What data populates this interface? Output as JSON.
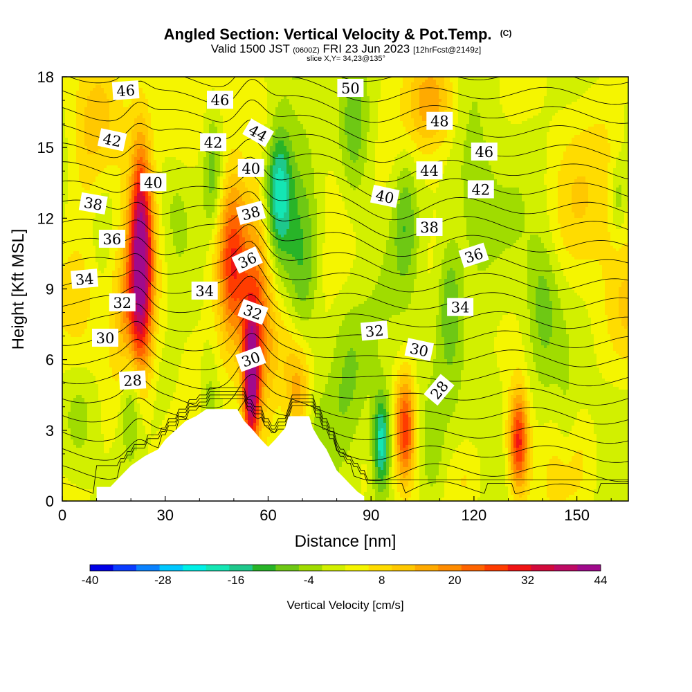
{
  "title": "Angled Section: Vertical Velocity & Pot.Temp.",
  "title_suffix": "(C)",
  "subtitle_valid": "Valid 1500 JST",
  "subtitle_utc": "(0600Z)",
  "subtitle_date": "FRI 23 Jun 2023",
  "subtitle_fcst": "[12hrFcst@2149z]",
  "subtitle_slice": "slice X,Y= 34,23@135°",
  "chart_data": {
    "type": "heatmap",
    "xlabel": "Distance [nm]",
    "ylabel": "Height [Kft MSL]",
    "xlim": [
      0,
      165
    ],
    "ylim": [
      0,
      18
    ],
    "xticks": [
      0,
      30,
      60,
      90,
      120,
      150
    ],
    "yticks": [
      0,
      3,
      6,
      9,
      12,
      15,
      18
    ],
    "colorbar": {
      "label": "Vertical Velocity [cm/s]",
      "min": -40,
      "max": 44,
      "step": 4,
      "tick_values": [
        -40,
        -28,
        -16,
        -4,
        8,
        20,
        32,
        44
      ],
      "colors": [
        "#0000e6",
        "#0a3cff",
        "#0a82ff",
        "#00c8ff",
        "#00f0e6",
        "#14e6b4",
        "#1ec88c",
        "#28b428",
        "#6ec814",
        "#a0dc00",
        "#d2f000",
        "#f5f500",
        "#ffdc00",
        "#ffc800",
        "#ffaa00",
        "#ff8c00",
        "#ff6400",
        "#ff3c00",
        "#f01414",
        "#d20a3c",
        "#be0a64",
        "#a00a8c"
      ]
    },
    "vertical_velocity_features": [
      {
        "x": 23,
        "y": 10.8,
        "value": 40,
        "x_spread": 2.3,
        "y_spread": 3.2
      },
      {
        "x": 20,
        "y": 7.5,
        "value": 18,
        "x_spread": 4,
        "y_spread": 3
      },
      {
        "x": 50,
        "y": 10.2,
        "value": 28,
        "x_spread": 3,
        "y_spread": 2.5
      },
      {
        "x": 55,
        "y": 5.0,
        "value": 40,
        "x_spread": 1.6,
        "y_spread": 2.0
      },
      {
        "x": 57,
        "y": 7.8,
        "value": 22,
        "x_spread": 3,
        "y_spread": 3
      },
      {
        "x": 66,
        "y": 6.5,
        "value": 12,
        "x_spread": 6,
        "y_spread": 2
      },
      {
        "x": 69,
        "y": 4.5,
        "value": 16,
        "x_spread": 2.5,
        "y_spread": 1.5
      },
      {
        "x": 100,
        "y": 3.0,
        "value": 28,
        "x_spread": 2.0,
        "y_spread": 1.6
      },
      {
        "x": 133,
        "y": 2.5,
        "value": 30,
        "x_spread": 2.0,
        "y_spread": 1.5
      },
      {
        "x": 108,
        "y": 17.0,
        "value": 16,
        "x_spread": 5,
        "y_spread": 1.5
      },
      {
        "x": 10,
        "y": 16.0,
        "value": 10,
        "x_spread": 5,
        "y_spread": 2.5
      },
      {
        "x": 33,
        "y": 16.5,
        "value": 8,
        "x_spread": 5,
        "y_spread": 2
      },
      {
        "x": 62,
        "y": 15.5,
        "value": 10,
        "x_spread": 4,
        "y_spread": 2
      },
      {
        "x": 45,
        "y": 11.0,
        "value": 10,
        "x_spread": 3,
        "y_spread": 2
      },
      {
        "x": 5,
        "y": 8.5,
        "value": 10,
        "x_spread": 5,
        "y_spread": 2
      },
      {
        "x": 80,
        "y": 13.0,
        "value": 6,
        "x_spread": 6,
        "y_spread": 2.5
      },
      {
        "x": 160,
        "y": 14.0,
        "value": 6,
        "x_spread": 5,
        "y_spread": 3
      },
      {
        "x": 150,
        "y": 1.5,
        "value": 6,
        "x_spread": 6,
        "y_spread": 1.5
      },
      {
        "x": 150,
        "y": 12.0,
        "value": 6,
        "x_spread": 5,
        "y_spread": 2.5
      },
      {
        "x": 118,
        "y": 0.8,
        "value": 6,
        "x_spread": 4,
        "y_spread": 1.2
      },
      {
        "x": 80,
        "y": 5.5,
        "value": 4,
        "x_spread": 4,
        "y_spread": 1.5
      },
      {
        "x": 165,
        "y": 8.0,
        "value": 6,
        "x_spread": 4,
        "y_spread": 2
      },
      {
        "x": 63,
        "y": 13.5,
        "value": -30,
        "x_spread": 3,
        "y_spread": 2.2
      },
      {
        "x": 70,
        "y": 9.0,
        "value": -14,
        "x_spread": 3.5,
        "y_spread": 4.5
      },
      {
        "x": 82,
        "y": 5.5,
        "value": -12,
        "x_spread": 5,
        "y_spread": 2.2
      },
      {
        "x": 93,
        "y": 2.5,
        "value": -24,
        "x_spread": 1.8,
        "y_spread": 1.5
      },
      {
        "x": 44,
        "y": 13.5,
        "value": -12,
        "x_spread": 2.0,
        "y_spread": 2.2
      },
      {
        "x": 43,
        "y": 4.0,
        "value": -8,
        "x_spread": 2.0,
        "y_spread": 1.8
      },
      {
        "x": 20,
        "y": 4.5,
        "value": -14,
        "x_spread": 2.2,
        "y_spread": 1.8
      },
      {
        "x": 5,
        "y": 3.2,
        "value": -8,
        "x_spread": 3.5,
        "y_spread": 1.5
      },
      {
        "x": 33,
        "y": 12.0,
        "value": -6,
        "x_spread": 3,
        "y_spread": 2
      },
      {
        "x": 85,
        "y": 16.0,
        "value": -10,
        "x_spread": 3,
        "y_spread": 2.5
      },
      {
        "x": 100,
        "y": 12.0,
        "value": -10,
        "x_spread": 2.5,
        "y_spread": 2
      },
      {
        "x": 113,
        "y": 8.5,
        "value": -12,
        "x_spread": 2.5,
        "y_spread": 2
      },
      {
        "x": 140,
        "y": 8.5,
        "value": -8,
        "x_spread": 3,
        "y_spread": 2
      },
      {
        "x": 120,
        "y": 12.5,
        "value": -6,
        "x_spread": 4,
        "y_spread": 2.5
      },
      {
        "x": 12,
        "y": 13.0,
        "value": -6,
        "x_spread": 3,
        "y_spread": 2
      },
      {
        "x": 125,
        "y": 4.0,
        "value": -4,
        "x_spread": 4,
        "y_spread": 2
      },
      {
        "x": 162,
        "y": 12.8,
        "value": -8,
        "x_spread": 1.5,
        "y_spread": 1.2
      },
      {
        "x": 33,
        "y": 1.5,
        "value": 6,
        "x_spread": 5,
        "y_spread": 1.5
      },
      {
        "x": 108,
        "y": 1.5,
        "value": -4,
        "x_spread": 2,
        "y_spread": 1.5
      },
      {
        "x": 147,
        "y": 3.0,
        "value": -4,
        "x_spread": 2,
        "y_spread": 1.5
      }
    ],
    "potential_temperature_contours": {
      "levels_C": [
        25,
        26,
        27,
        28,
        29,
        30,
        31,
        32,
        33,
        34,
        35,
        36,
        37,
        38,
        39,
        40,
        41,
        42,
        43,
        44,
        45,
        46,
        47,
        48,
        49,
        50,
        51
      ],
      "labels": [
        {
          "text": "46",
          "x": 18.5,
          "y": 17.4,
          "angle": -4
        },
        {
          "text": "42",
          "x": 14.5,
          "y": 15.3,
          "angle": 12
        },
        {
          "text": "40",
          "x": 26.5,
          "y": 13.5,
          "angle": 0
        },
        {
          "text": "38",
          "x": 9,
          "y": 12.6,
          "angle": 10
        },
        {
          "text": "36",
          "x": 14.5,
          "y": 11.1,
          "angle": 0
        },
        {
          "text": "34",
          "x": 6.5,
          "y": 9.4,
          "angle": -5
        },
        {
          "text": "32",
          "x": 17.5,
          "y": 8.4,
          "angle": 0
        },
        {
          "text": "30",
          "x": 12.5,
          "y": 6.9,
          "angle": 0
        },
        {
          "text": "28",
          "x": 20.5,
          "y": 5.1,
          "angle": -3
        },
        {
          "text": "46",
          "x": 46,
          "y": 17.0,
          "angle": 0
        },
        {
          "text": "42",
          "x": 44,
          "y": 15.2,
          "angle": 0
        },
        {
          "text": "44",
          "x": 57,
          "y": 15.6,
          "angle": 30
        },
        {
          "text": "40",
          "x": 55,
          "y": 14.1,
          "angle": 0
        },
        {
          "text": "38",
          "x": 55,
          "y": 12.2,
          "angle": -15
        },
        {
          "text": "36",
          "x": 54,
          "y": 10.2,
          "angle": -25
        },
        {
          "text": "34",
          "x": 41.5,
          "y": 8.9,
          "angle": 0
        },
        {
          "text": "32",
          "x": 55.5,
          "y": 8.0,
          "angle": 20
        },
        {
          "text": "30",
          "x": 55,
          "y": 6.0,
          "angle": -20
        },
        {
          "text": "50",
          "x": 84,
          "y": 17.5,
          "angle": 0
        },
        {
          "text": "48",
          "x": 110,
          "y": 16.1,
          "angle": 0
        },
        {
          "text": "46",
          "x": 123,
          "y": 14.8,
          "angle": 0
        },
        {
          "text": "44",
          "x": 107,
          "y": 14.0,
          "angle": 0
        },
        {
          "text": "42",
          "x": 122,
          "y": 13.2,
          "angle": 0
        },
        {
          "text": "40",
          "x": 94,
          "y": 12.9,
          "angle": 12
        },
        {
          "text": "38",
          "x": 107,
          "y": 11.6,
          "angle": 0
        },
        {
          "text": "36",
          "x": 120,
          "y": 10.4,
          "angle": -18
        },
        {
          "text": "34",
          "x": 116,
          "y": 8.2,
          "angle": 0
        },
        {
          "text": "32",
          "x": 91,
          "y": 7.2,
          "angle": -5
        },
        {
          "text": "30",
          "x": 104,
          "y": 6.4,
          "angle": 12
        },
        {
          "text": "28",
          "x": 110,
          "y": 4.7,
          "angle": -50
        }
      ]
    },
    "terrain_profile": [
      [
        10,
        0.6
      ],
      [
        14,
        0.6
      ],
      [
        16,
        0.9
      ],
      [
        18,
        1.2
      ],
      [
        20,
        1.5
      ],
      [
        24,
        1.9
      ],
      [
        28,
        2.2
      ],
      [
        30,
        2.6
      ],
      [
        33,
        3.0
      ],
      [
        36,
        3.4
      ],
      [
        39,
        3.6
      ],
      [
        42,
        3.9
      ],
      [
        51,
        3.9
      ],
      [
        53,
        3.4
      ],
      [
        55,
        3.1
      ],
      [
        58,
        2.6
      ],
      [
        60,
        2.3
      ],
      [
        62,
        2.6
      ],
      [
        65,
        3.1
      ],
      [
        66,
        3.6
      ],
      [
        72,
        3.6
      ],
      [
        73,
        3.1
      ],
      [
        75,
        2.6
      ],
      [
        77,
        2.2
      ],
      [
        79,
        1.6
      ],
      [
        80,
        1.3
      ],
      [
        82,
        1.0
      ],
      [
        84,
        0.7
      ],
      [
        86,
        0.4
      ],
      [
        88,
        0.2
      ]
    ]
  }
}
